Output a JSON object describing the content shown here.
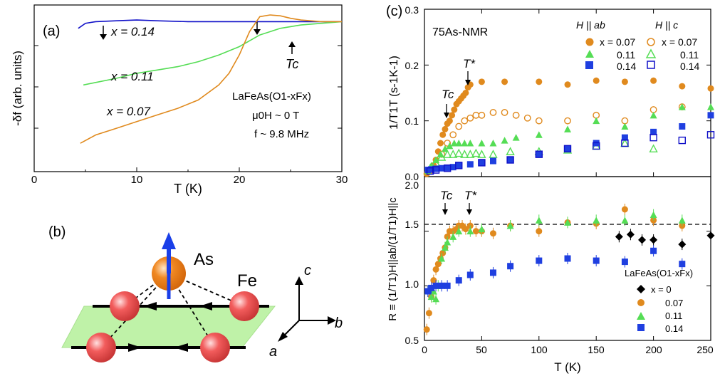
{
  "panels": {
    "a": {
      "label": "(a)",
      "ylabel": "-δf (arb. units)",
      "xlabel": "T (K)",
      "xticks": [
        "0",
        "10",
        "20",
        "30"
      ],
      "compound": "LaFeAs(O1-xFx)",
      "field_note": "μ0H ~ 0 T",
      "freq_note": "f ~ 9.8 MHz",
      "tc_label": "Tc",
      "series_labels": [
        "x = 0.14",
        "x = 0.11",
        "x = 0.07"
      ]
    },
    "b": {
      "label": "(b)",
      "atom_as": "As",
      "atom_fe": "Fe",
      "axis_a": "a",
      "axis_b": "b",
      "axis_c": "c"
    },
    "c": {
      "label": "(c)",
      "nmr_label": "75As-NMR",
      "legend_h_ab": "H || ab",
      "legend_h_c": "H || c",
      "legend_rows": [
        "x = 0.07",
        "0.11",
        "0.14"
      ],
      "top_ylabel": "1/T1T (s-1K-1)",
      "top_yticks": [
        "0.0",
        "0.1",
        "0.2",
        "0.3"
      ],
      "bottom_ylabel": "R ≡ (1/T1)H||ab/(1/T1)H||c",
      "bottom_yticks": [
        "0.5",
        "1.0",
        "1.5",
        "2.0"
      ],
      "xlabel": "T (K)",
      "xticks": [
        "0",
        "50",
        "100",
        "150",
        "200",
        "250"
      ],
      "tc_label": "Tc",
      "tstar_label": "T*",
      "bottom_legend_title": "LaFeAs(O1-xFx)",
      "bottom_legend_rows": [
        "x = 0",
        "0.07",
        "0.11",
        "0.14"
      ]
    }
  },
  "colors": {
    "orange": "#e08a1e",
    "green": "#55dd55",
    "blue": "#1f3fe0",
    "black": "#000000",
    "darkblue": "#1010c8"
  },
  "chart_data": [
    {
      "type": "line",
      "title": "(a)",
      "xlabel": "T (K)",
      "ylabel": "-δf (arb. units)",
      "xlim": [
        0,
        30
      ],
      "series": [
        {
          "name": "x = 0.14",
          "x": [
            4.3,
            5,
            6,
            8,
            10,
            12,
            15,
            20,
            25,
            30
          ],
          "y": [
            0.86,
            0.89,
            0.9,
            0.905,
            0.91,
            0.905,
            0.9,
            0.9,
            0.9,
            0.9
          ]
        },
        {
          "name": "x = 0.11",
          "x": [
            4.8,
            6,
            8,
            10,
            12,
            14,
            16,
            18,
            20,
            22,
            24,
            26,
            30
          ],
          "y": [
            0.52,
            0.535,
            0.56,
            0.59,
            0.61,
            0.63,
            0.66,
            0.7,
            0.75,
            0.82,
            0.86,
            0.88,
            0.9
          ]
        },
        {
          "name": "x = 0.07",
          "x": [
            4.5,
            6,
            8,
            10,
            12,
            14,
            16,
            18,
            19,
            20,
            21,
            22,
            23,
            24,
            25,
            26,
            28,
            30
          ],
          "y": [
            0.17,
            0.22,
            0.26,
            0.3,
            0.34,
            0.38,
            0.43,
            0.52,
            0.59,
            0.7,
            0.84,
            0.93,
            0.94,
            0.935,
            0.92,
            0.91,
            0.9,
            0.9
          ]
        }
      ]
    },
    {
      "type": "scatter",
      "title": "(c) top: 1/T1T",
      "xlabel": "T (K)",
      "ylabel": "1/T1T (s-1K-1)",
      "xlim": [
        0,
        250
      ],
      "ylim": [
        0,
        0.3
      ],
      "series": [
        {
          "name": "H || ab, x = 0.07",
          "x": [
            2,
            5,
            8,
            10,
            12,
            14,
            16,
            18,
            20,
            22,
            24,
            26,
            28,
            30,
            32,
            34,
            36,
            38,
            40,
            50,
            70,
            100,
            125,
            150,
            175,
            200,
            225,
            250
          ],
          "y": [
            0.005,
            0.01,
            0.02,
            0.03,
            0.045,
            0.06,
            0.075,
            0.085,
            0.095,
            0.1,
            0.11,
            0.12,
            0.13,
            0.135,
            0.14,
            0.145,
            0.15,
            0.16,
            0.165,
            0.17,
            0.17,
            0.17,
            0.165,
            0.172,
            0.17,
            0.172,
            0.162,
            0.158
          ]
        },
        {
          "name": "H || c, x = 0.07",
          "x": [
            10,
            15,
            20,
            25,
            30,
            35,
            40,
            45,
            50,
            60,
            70,
            80,
            90,
            100,
            125,
            150,
            175,
            200,
            225
          ],
          "y": [
            0.02,
            0.04,
            0.06,
            0.075,
            0.09,
            0.1,
            0.105,
            0.11,
            0.11,
            0.115,
            0.115,
            0.11,
            0.105,
            0.1,
            0.1,
            0.11,
            0.1,
            0.12,
            0.125
          ]
        },
        {
          "name": "H || ab, x = 0.11",
          "x": [
            3,
            6,
            10,
            14,
            18,
            22,
            26,
            30,
            35,
            40,
            50,
            60,
            70,
            80,
            100,
            125,
            150,
            175,
            200,
            225,
            250
          ],
          "y": [
            0.01,
            0.02,
            0.03,
            0.04,
            0.05,
            0.055,
            0.06,
            0.06,
            0.06,
            0.06,
            0.06,
            0.06,
            0.065,
            0.07,
            0.075,
            0.085,
            0.1,
            0.09,
            0.11,
            0.125,
            0.125
          ]
        },
        {
          "name": "H || c, x = 0.11",
          "x": [
            5,
            10,
            15,
            20,
            25,
            30,
            35,
            40,
            45,
            50,
            60,
            75,
            100,
            125,
            150,
            175,
            200
          ],
          "y": [
            0.015,
            0.025,
            0.035,
            0.04,
            0.04,
            0.042,
            0.04,
            0.04,
            0.042,
            0.04,
            0.04,
            0.045,
            0.045,
            0.048,
            0.055,
            0.06,
            0.05
          ]
        },
        {
          "name": "H || ab, x = 0.14",
          "x": [
            3,
            6,
            10,
            15,
            20,
            25,
            30,
            40,
            50,
            60,
            75,
            100,
            125,
            150,
            175,
            200,
            225,
            250
          ],
          "y": [
            0.012,
            0.013,
            0.014,
            0.015,
            0.016,
            0.017,
            0.02,
            0.022,
            0.025,
            0.028,
            0.03,
            0.04,
            0.05,
            0.06,
            0.07,
            0.08,
            0.09,
            0.11
          ]
        },
        {
          "name": "H || c, x = 0.14",
          "x": [
            5,
            10,
            20,
            30,
            50,
            75,
            100,
            125,
            150,
            175,
            200,
            225,
            250
          ],
          "y": [
            0.01,
            0.012,
            0.015,
            0.02,
            0.025,
            0.03,
            0.04,
            0.05,
            0.055,
            0.06,
            0.07,
            0.065,
            0.075
          ]
        }
      ]
    },
    {
      "type": "scatter",
      "title": "(c) bottom: R",
      "xlabel": "T (K)",
      "ylabel": "R ≡ (1/T1)H||ab/(1/T1)H||c",
      "xlim": [
        0,
        250
      ],
      "ylim": [
        0.5,
        2.0
      ],
      "reference_line": 1.5,
      "series": [
        {
          "name": "x = 0",
          "x": [
            170,
            180,
            190,
            200,
            225,
            250
          ],
          "y": [
            1.45,
            1.47,
            1.42,
            1.42,
            1.38,
            1.46
          ]
        },
        {
          "name": "0.07",
          "x": [
            2,
            4,
            6,
            8,
            10,
            12,
            14,
            16,
            18,
            20,
            22,
            25,
            28,
            30,
            33,
            36,
            40,
            45,
            50,
            60,
            75,
            100,
            125,
            150,
            175,
            200,
            225
          ],
          "y": [
            0.6,
            0.75,
            0.9,
            1.05,
            1.15,
            1.2,
            1.25,
            1.3,
            1.35,
            1.45,
            1.5,
            1.5,
            1.52,
            1.55,
            1.55,
            1.52,
            1.55,
            1.5,
            1.5,
            1.48,
            1.55,
            1.5,
            1.58,
            1.57,
            1.7,
            1.6,
            1.55
          ]
        },
        {
          "name": "0.11",
          "x": [
            3,
            6,
            8,
            10,
            12,
            15,
            18,
            20,
            25,
            30,
            40,
            50,
            75,
            100,
            125,
            150,
            175,
            200,
            225
          ],
          "y": [
            0.95,
            0.9,
            0.95,
            0.88,
            1.0,
            1.25,
            1.35,
            1.4,
            1.45,
            1.5,
            1.5,
            1.52,
            1.55,
            1.6,
            1.58,
            1.6,
            1.6,
            1.65,
            1.6
          ]
        },
        {
          "name": "0.14",
          "x": [
            3,
            6,
            10,
            15,
            20,
            30,
            40,
            60,
            75,
            100,
            125,
            150,
            175,
            200,
            225
          ],
          "y": [
            0.95,
            0.98,
            1.0,
            1.0,
            1.0,
            1.05,
            1.1,
            1.12,
            1.18,
            1.23,
            1.25,
            1.23,
            1.22,
            1.32,
            1.2
          ]
        }
      ]
    }
  ]
}
